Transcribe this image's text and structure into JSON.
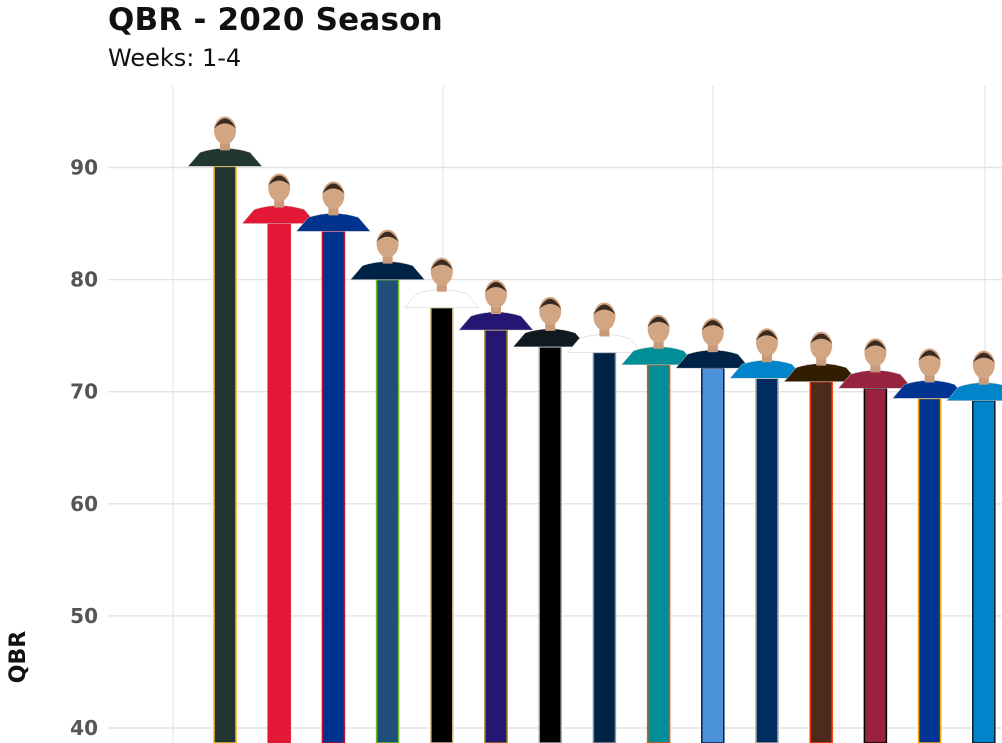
{
  "chart_data": {
    "type": "bar",
    "title": "QBR - 2020 Season",
    "subtitle": "Weeks: 1-4",
    "xlabel": "",
    "ylabel": "QBR",
    "ylim": [
      40,
      96
    ],
    "yticks": [
      40,
      50,
      60,
      70,
      80,
      90
    ],
    "grid": true,
    "values": [
      90.1,
      85.0,
      84.3,
      80.0,
      77.5,
      75.5,
      74.0,
      73.5,
      72.4,
      72.1,
      71.2,
      70.9,
      70.3,
      69.4,
      69.2
    ],
    "bar_colors": [
      "#203731",
      "#E31837",
      "#00338D",
      "#1F4E79",
      "#000000",
      "#241773",
      "#000000",
      "#002244",
      "#008E97",
      "#4B92DB",
      "#002C5F",
      "#4E2A1E",
      "#97233F",
      "#003594",
      "#0085CA"
    ],
    "bar_outline_colors": [
      "#FFB612",
      "#E31837",
      "#C60C30",
      "#69BE28",
      "#D3BC8D",
      "#9E7C0C",
      "#A5ACAF",
      "#869397",
      "#FC4C02",
      "#002244",
      "#A2AAAD",
      "#FF3C00",
      "#000000",
      "#FFA300",
      "#101820"
    ],
    "headshot_jersey_colors": [
      "#203731",
      "#E31837",
      "#00338D",
      "#002244",
      "#ffffff",
      "#241773",
      "#101820",
      "#ffffff",
      "#008E97",
      "#002244",
      "#0085CA",
      "#311D00",
      "#97233F",
      "#003594",
      "#0085CA"
    ],
    "headshot_icon": "player-headshot-icon"
  }
}
